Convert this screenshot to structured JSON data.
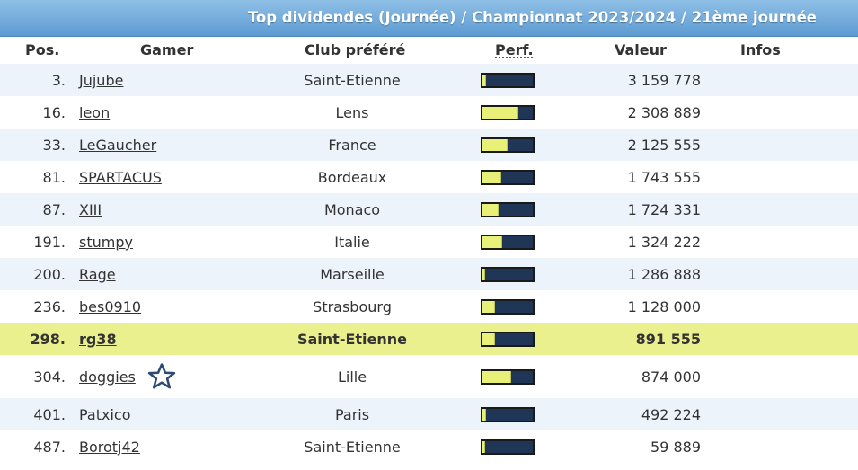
{
  "title": "Top dividendes (Journée) / Championnat 2023/2024 / 21ème journée",
  "columns": {
    "pos": "Pos.",
    "gamer": "Gamer",
    "club": "Club préféré",
    "perf": "Perf.",
    "valeur": "Valeur",
    "infos": "Infos"
  },
  "colors": {
    "title_bar": "#6fa8dc",
    "row_shade": "#edf3fb",
    "highlight_row": "#ebf08e",
    "perf_bar_bg": "#1f3657",
    "perf_bar_fill": "#e8f078",
    "star_icon": "#2c4a73"
  },
  "rows": [
    {
      "pos": "3.",
      "gamer": "Jujube",
      "club": "Saint-Etienne",
      "perf": 0.05,
      "valeur": "3 159 778"
    },
    {
      "pos": "16.",
      "gamer": "leon",
      "club": "Lens",
      "perf": 0.7,
      "valeur": "2 308 889"
    },
    {
      "pos": "33.",
      "gamer": "LeGaucher",
      "club": "France",
      "perf": 0.48,
      "valeur": "2 125 555"
    },
    {
      "pos": "81.",
      "gamer": "SPARTACUS",
      "club": "Bordeaux",
      "perf": 0.35,
      "valeur": "1 743 555"
    },
    {
      "pos": "87.",
      "gamer": "XIII",
      "club": "Monaco",
      "perf": 0.3,
      "valeur": "1 724 331"
    },
    {
      "pos": "191.",
      "gamer": "stumpy",
      "club": "Italie",
      "perf": 0.38,
      "valeur": "1 324 222"
    },
    {
      "pos": "200.",
      "gamer": "Rage",
      "club": "Marseille",
      "perf": 0.04,
      "valeur": "1 286 888"
    },
    {
      "pos": "236.",
      "gamer": "bes0910",
      "club": "Strasbourg",
      "perf": 0.24,
      "valeur": "1 128 000"
    },
    {
      "pos": "298.",
      "gamer": "rg38",
      "club": "Saint-Etienne",
      "perf": 0.24,
      "valeur": "891 555",
      "highlight": true
    },
    {
      "pos": "304.",
      "gamer": "doggies",
      "club": "Lille",
      "perf": 0.55,
      "valeur": "874 000",
      "icon": "star-icon"
    },
    {
      "pos": "401.",
      "gamer": "Patxico",
      "club": "Paris",
      "perf": 0.05,
      "valeur": "492 224"
    },
    {
      "pos": "487.",
      "gamer": "Borotj42",
      "club": "Saint-Etienne",
      "perf": 0.04,
      "valeur": "59 889"
    }
  ]
}
